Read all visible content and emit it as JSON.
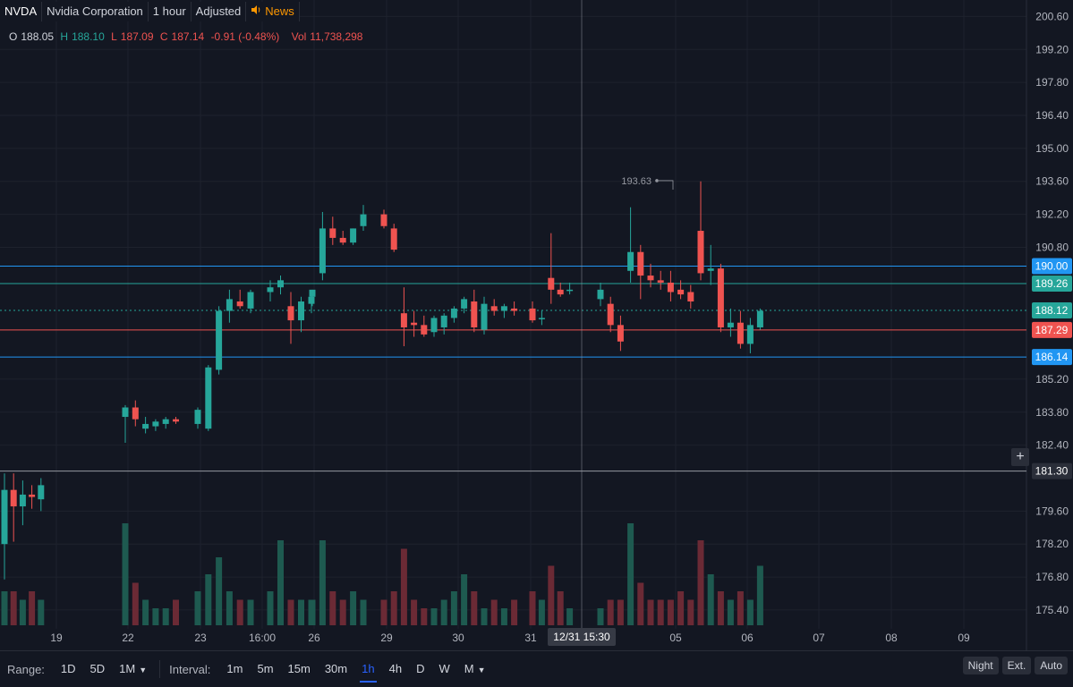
{
  "header": {
    "symbol": "NVDA",
    "company": "Nvidia Corporation",
    "interval": "1 hour",
    "adjust": "Adjusted",
    "news": "News"
  },
  "ohlc": {
    "o_label": "O",
    "o": "188.05",
    "h_label": "H",
    "h": "188.10",
    "l_label": "L",
    "l": "187.09",
    "c_label": "C",
    "c": "187.14",
    "change": "-0.91 (-0.48%)",
    "vol_label": "Vol",
    "vol": "11,738,298"
  },
  "controls": {
    "range_label": "Range:",
    "ranges": [
      "1D",
      "5D",
      "1M"
    ],
    "interval_label": "Interval:",
    "intervals": [
      "1m",
      "5m",
      "15m",
      "30m",
      "1h",
      "4h",
      "D",
      "W",
      "M"
    ],
    "active_interval": "1h",
    "right_buttons": [
      "Night",
      "Ext.",
      "Auto"
    ]
  },
  "colors": {
    "background": "#131722",
    "up": "#26a69a",
    "down": "#ef5350",
    "grid": "#1e222d",
    "blue_line": "#2196f3",
    "crosshair": "#9598a1"
  },
  "chart_data": {
    "type": "candlestick",
    "symbol": "NVDA",
    "y_axis_ticks": [
      "200.60",
      "199.20",
      "197.80",
      "196.40",
      "195.00",
      "193.60",
      "192.20",
      "190.80",
      "185.20",
      "183.80",
      "182.40",
      "179.60",
      "178.20",
      "176.80",
      "175.40"
    ],
    "ylim": [
      174.6,
      201.3
    ],
    "x_tick_labels": [
      "19",
      "22",
      "23",
      "16:00",
      "26",
      "29",
      "30",
      "31",
      "05",
      "06",
      "07",
      "08",
      "09"
    ],
    "candles": [
      {
        "o": 178.2,
        "h": 181.2,
        "l": 176.7,
        "c": 180.5
      },
      {
        "o": 180.5,
        "h": 181.2,
        "l": 178.3,
        "c": 179.8
      },
      {
        "o": 179.8,
        "h": 180.9,
        "l": 179.0,
        "c": 180.3
      },
      {
        "o": 180.3,
        "h": 180.7,
        "l": 179.7,
        "c": 180.2
      },
      {
        "o": 180.1,
        "h": 181.0,
        "l": 179.6,
        "c": 180.7
      },
      {
        "o": 183.6,
        "h": 184.1,
        "l": 182.5,
        "c": 184.0
      },
      {
        "o": 184.0,
        "h": 184.3,
        "l": 183.2,
        "c": 183.5
      },
      {
        "o": 183.1,
        "h": 183.6,
        "l": 182.9,
        "c": 183.3
      },
      {
        "o": 183.2,
        "h": 183.5,
        "l": 183.0,
        "c": 183.4
      },
      {
        "o": 183.3,
        "h": 183.6,
        "l": 183.1,
        "c": 183.5
      },
      {
        "o": 183.5,
        "h": 183.6,
        "l": 183.3,
        "c": 183.4
      },
      {
        "o": 183.3,
        "h": 184.0,
        "l": 183.1,
        "c": 183.9
      },
      {
        "o": 183.1,
        "h": 185.8,
        "l": 183.0,
        "c": 185.7
      },
      {
        "o": 185.6,
        "h": 188.3,
        "l": 185.4,
        "c": 188.1
      },
      {
        "o": 188.1,
        "h": 189.0,
        "l": 187.6,
        "c": 188.6
      },
      {
        "o": 188.5,
        "h": 189.0,
        "l": 188.2,
        "c": 188.3
      },
      {
        "o": 188.2,
        "h": 189.0,
        "l": 188.0,
        "c": 188.9
      },
      {
        "o": 188.9,
        "h": 189.4,
        "l": 188.5,
        "c": 189.1
      },
      {
        "o": 189.1,
        "h": 189.6,
        "l": 188.8,
        "c": 189.4
      },
      {
        "o": 188.3,
        "h": 188.9,
        "l": 186.7,
        "c": 187.7
      },
      {
        "o": 187.7,
        "h": 188.7,
        "l": 187.2,
        "c": 188.5
      },
      {
        "o": 188.4,
        "h": 188.8,
        "l": 188.0,
        "c": 188.7
      },
      {
        "o": 188.7,
        "h": 189.0,
        "l": 188.3,
        "c": 189.0
      },
      {
        "o": 189.7,
        "h": 192.3,
        "l": 189.4,
        "c": 191.6
      },
      {
        "o": 191.6,
        "h": 192.1,
        "l": 190.9,
        "c": 191.2
      },
      {
        "o": 191.2,
        "h": 191.5,
        "l": 190.9,
        "c": 191.0
      },
      {
        "o": 191.0,
        "h": 191.6,
        "l": 190.9,
        "c": 191.6
      },
      {
        "o": 191.7,
        "h": 192.6,
        "l": 191.5,
        "c": 192.2
      },
      {
        "o": 192.2,
        "h": 192.4,
        "l": 191.6,
        "c": 191.7
      },
      {
        "o": 191.6,
        "h": 191.8,
        "l": 190.6,
        "c": 190.7
      },
      {
        "o": 188.0,
        "h": 189.1,
        "l": 186.6,
        "c": 187.4
      },
      {
        "o": 187.6,
        "h": 188.1,
        "l": 187.0,
        "c": 187.5
      },
      {
        "o": 187.5,
        "h": 187.9,
        "l": 187.0,
        "c": 187.1
      },
      {
        "o": 187.2,
        "h": 187.9,
        "l": 187.0,
        "c": 187.8
      },
      {
        "o": 187.4,
        "h": 188.0,
        "l": 187.1,
        "c": 187.9
      },
      {
        "o": 187.8,
        "h": 188.3,
        "l": 187.6,
        "c": 188.2
      },
      {
        "o": 188.2,
        "h": 188.7,
        "l": 188.0,
        "c": 188.6
      },
      {
        "o": 188.5,
        "h": 189.0,
        "l": 187.2,
        "c": 187.4
      },
      {
        "o": 187.3,
        "h": 188.7,
        "l": 187.1,
        "c": 188.4
      },
      {
        "o": 188.3,
        "h": 188.6,
        "l": 187.9,
        "c": 188.1
      },
      {
        "o": 188.1,
        "h": 188.4,
        "l": 187.8,
        "c": 188.3
      },
      {
        "o": 188.2,
        "h": 188.5,
        "l": 187.9,
        "c": 188.1
      },
      {
        "o": 188.2,
        "h": 188.5,
        "l": 187.6,
        "c": 187.7
      },
      {
        "o": 187.8,
        "h": 188.1,
        "l": 187.5,
        "c": 187.8
      },
      {
        "o": 189.5,
        "h": 191.4,
        "l": 188.4,
        "c": 189.0
      },
      {
        "o": 189.0,
        "h": 189.3,
        "l": 188.7,
        "c": 188.8
      },
      {
        "o": 189.0,
        "h": 189.3,
        "l": 188.8,
        "c": 189.0
      },
      {
        "o": 188.6,
        "h": 189.3,
        "l": 188.3,
        "c": 189.0
      },
      {
        "o": 188.4,
        "h": 188.7,
        "l": 187.2,
        "c": 187.5
      },
      {
        "o": 187.5,
        "h": 187.9,
        "l": 186.4,
        "c": 186.8
      },
      {
        "o": 189.8,
        "h": 192.5,
        "l": 189.3,
        "c": 190.6
      },
      {
        "o": 190.6,
        "h": 190.9,
        "l": 188.6,
        "c": 189.6
      },
      {
        "o": 189.6,
        "h": 190.1,
        "l": 189.1,
        "c": 189.4
      },
      {
        "o": 189.4,
        "h": 189.8,
        "l": 189.0,
        "c": 189.3
      },
      {
        "o": 189.3,
        "h": 189.8,
        "l": 188.5,
        "c": 188.9
      },
      {
        "o": 189.0,
        "h": 189.4,
        "l": 188.6,
        "c": 188.8
      },
      {
        "o": 188.9,
        "h": 189.2,
        "l": 188.2,
        "c": 188.5
      },
      {
        "o": 191.5,
        "h": 193.6,
        "l": 189.4,
        "c": 189.7
      },
      {
        "o": 189.8,
        "h": 190.9,
        "l": 189.2,
        "c": 189.9
      },
      {
        "o": 189.9,
        "h": 190.1,
        "l": 187.2,
        "c": 187.4
      },
      {
        "o": 187.4,
        "h": 188.2,
        "l": 187.0,
        "c": 187.6
      },
      {
        "o": 187.6,
        "h": 188.1,
        "l": 186.5,
        "c": 186.7
      },
      {
        "o": 186.7,
        "h": 187.8,
        "l": 186.3,
        "c": 187.5
      },
      {
        "o": 187.4,
        "h": 188.2,
        "l": 187.3,
        "c": 188.1
      }
    ],
    "volumes": [
      4,
      4,
      3,
      4,
      3,
      12,
      5,
      3,
      2,
      2,
      3,
      4,
      6,
      8,
      4,
      3,
      3,
      4,
      10,
      3,
      3,
      3,
      3,
      10,
      4,
      3,
      4,
      3,
      3,
      4,
      9,
      3,
      2,
      2,
      3,
      4,
      6,
      4,
      2,
      3,
      2,
      3,
      4,
      3,
      7,
      4,
      2,
      2,
      3,
      3,
      12,
      5,
      3,
      3,
      3,
      4,
      3,
      10,
      6,
      4,
      3,
      4,
      3,
      7
    ],
    "high_annotation": "193.63",
    "price_lines": [
      {
        "price": "190.00",
        "color": "#2196f3"
      },
      {
        "price": "189.26",
        "color": "#26a69a"
      },
      {
        "price": "188.12",
        "color": "#26a69a"
      },
      {
        "price": "187.29",
        "color": "#ef5350"
      },
      {
        "price": "186.14",
        "color": "#2196f3"
      },
      {
        "price": "181.30",
        "color": "#9598a1"
      }
    ],
    "crosshair_label": "12/31 15:30",
    "grid": true
  }
}
